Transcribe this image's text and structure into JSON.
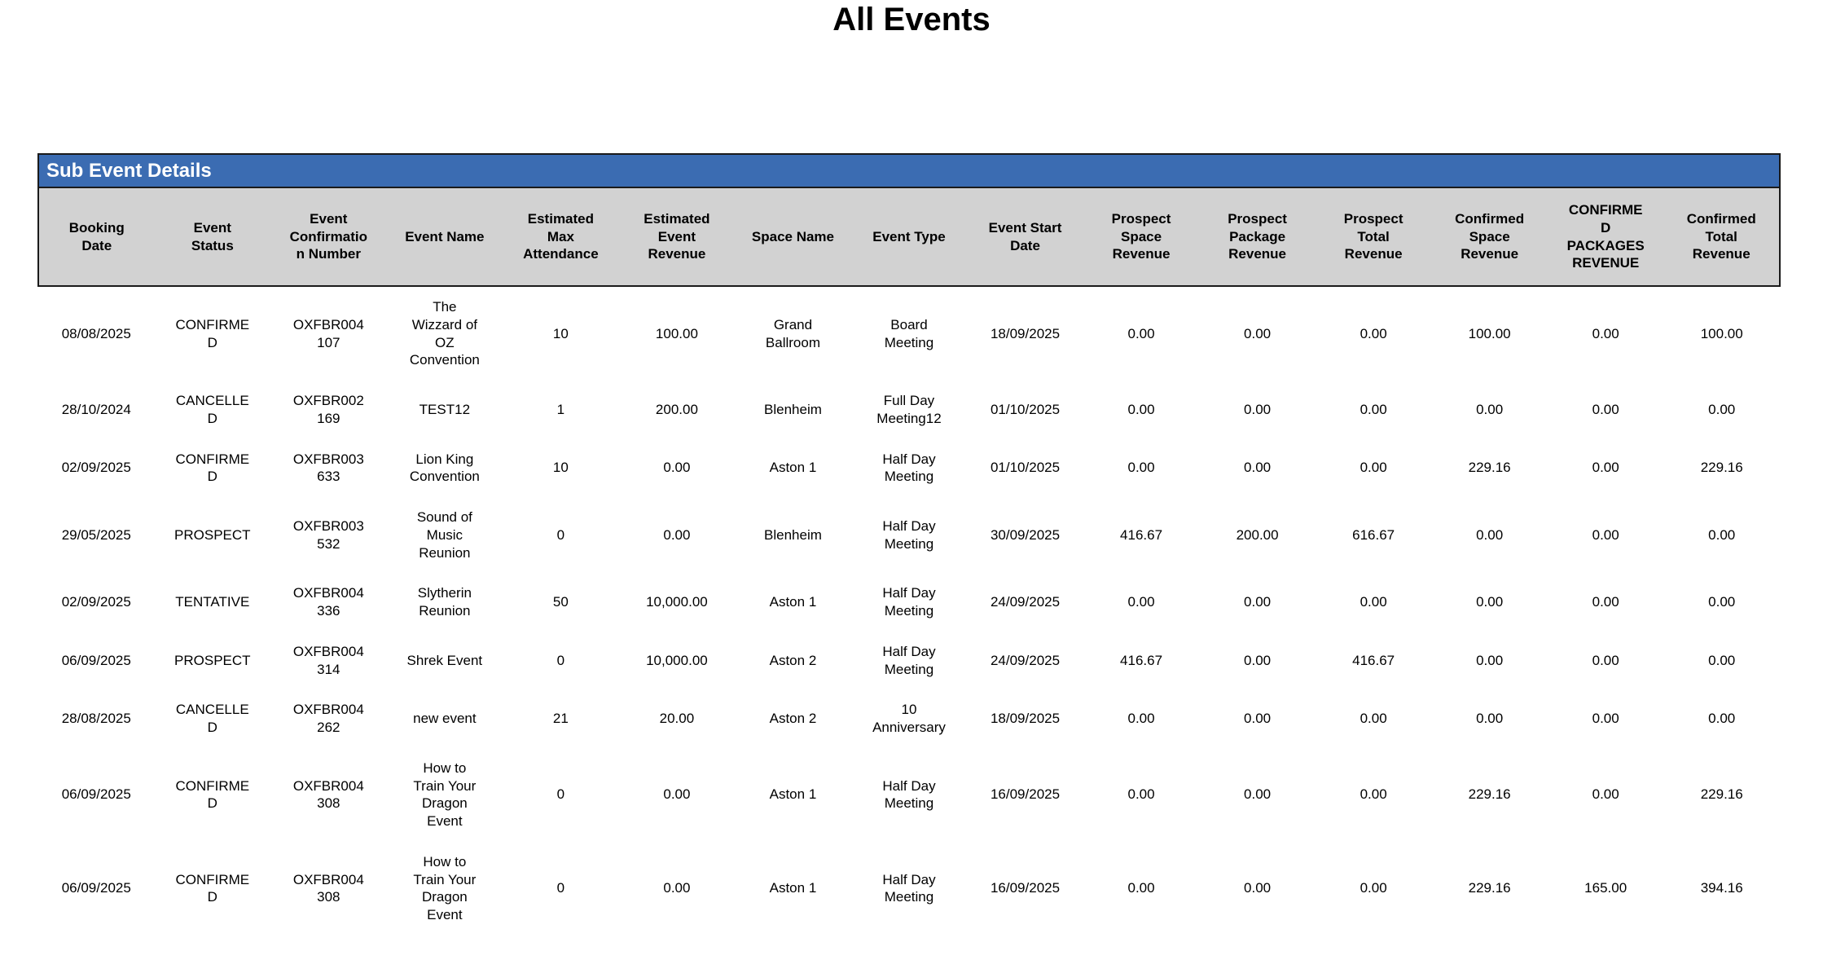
{
  "page": {
    "title": "All Events"
  },
  "colors": {
    "section_header_bg": "#3B6CB2",
    "section_header_text": "#FFFFFF",
    "column_header_bg": "#D2D2D2",
    "border_dark": "#1A1A1A",
    "body_bg": "#FFFFFF",
    "text": "#000000"
  },
  "section": {
    "title": "Sub Event Details"
  },
  "table": {
    "columns": [
      {
        "key": "booking_date",
        "label": "Booking Date"
      },
      {
        "key": "event_status",
        "label": "Event Status"
      },
      {
        "key": "event_confirmation_number",
        "label": "Event Confirmation Number"
      },
      {
        "key": "event_name",
        "label": "Event Name"
      },
      {
        "key": "estimated_max_attendance",
        "label": "Estimated Max Attendance"
      },
      {
        "key": "estimated_event_revenue",
        "label": "Estimated Event Revenue"
      },
      {
        "key": "space_name",
        "label": "Space Name"
      },
      {
        "key": "event_type",
        "label": "Event Type"
      },
      {
        "key": "event_start_date",
        "label": "Event Start Date"
      },
      {
        "key": "prospect_space_revenue",
        "label": "Prospect Space Revenue"
      },
      {
        "key": "prospect_package_revenue",
        "label": "Prospect Package Revenue"
      },
      {
        "key": "prospect_total_revenue",
        "label": "Prospect Total Revenue"
      },
      {
        "key": "confirmed_space_revenue",
        "label": "Confirmed Space Revenue"
      },
      {
        "key": "confirmed_packages_revenue",
        "label": "CONFIRMED PACKAGES REVENUE"
      },
      {
        "key": "confirmed_total_revenue",
        "label": "Confirmed Total Revenue"
      }
    ],
    "rows": [
      {
        "booking_date": "08/08/2025",
        "event_status": "CONFIRMED",
        "event_confirmation_number": "OXFBR004107",
        "event_name": "The Wizzard of OZ Convention",
        "estimated_max_attendance": "10",
        "estimated_event_revenue": "100.00",
        "space_name": "Grand Ballroom",
        "event_type": "Board Meeting",
        "event_start_date": "18/09/2025",
        "prospect_space_revenue": "0.00",
        "prospect_package_revenue": "0.00",
        "prospect_total_revenue": "0.00",
        "confirmed_space_revenue": "100.00",
        "confirmed_packages_revenue": "0.00",
        "confirmed_total_revenue": "100.00"
      },
      {
        "booking_date": "28/10/2024",
        "event_status": "CANCELLED",
        "event_confirmation_number": "OXFBR002169",
        "event_name": "TEST12",
        "estimated_max_attendance": "1",
        "estimated_event_revenue": "200.00",
        "space_name": "Blenheim",
        "event_type": "Full Day Meeting12",
        "event_start_date": "01/10/2025",
        "prospect_space_revenue": "0.00",
        "prospect_package_revenue": "0.00",
        "prospect_total_revenue": "0.00",
        "confirmed_space_revenue": "0.00",
        "confirmed_packages_revenue": "0.00",
        "confirmed_total_revenue": "0.00"
      },
      {
        "booking_date": "02/09/2025",
        "event_status": "CONFIRMED",
        "event_confirmation_number": "OXFBR003633",
        "event_name": "Lion King Convention",
        "estimated_max_attendance": "10",
        "estimated_event_revenue": "0.00",
        "space_name": "Aston 1",
        "event_type": "Half Day Meeting",
        "event_start_date": "01/10/2025",
        "prospect_space_revenue": "0.00",
        "prospect_package_revenue": "0.00",
        "prospect_total_revenue": "0.00",
        "confirmed_space_revenue": "229.16",
        "confirmed_packages_revenue": "0.00",
        "confirmed_total_revenue": "229.16"
      },
      {
        "booking_date": "29/05/2025",
        "event_status": "PROSPECT",
        "event_confirmation_number": "OXFBR003532",
        "event_name": "Sound of Music Reunion",
        "estimated_max_attendance": "0",
        "estimated_event_revenue": "0.00",
        "space_name": "Blenheim",
        "event_type": "Half Day Meeting",
        "event_start_date": "30/09/2025",
        "prospect_space_revenue": "416.67",
        "prospect_package_revenue": "200.00",
        "prospect_total_revenue": "616.67",
        "confirmed_space_revenue": "0.00",
        "confirmed_packages_revenue": "0.00",
        "confirmed_total_revenue": "0.00"
      },
      {
        "booking_date": "02/09/2025",
        "event_status": "TENTATIVE",
        "event_confirmation_number": "OXFBR004336",
        "event_name": "Slytherin Reunion",
        "estimated_max_attendance": "50",
        "estimated_event_revenue": "10,000.00",
        "space_name": "Aston 1",
        "event_type": "Half Day Meeting",
        "event_start_date": "24/09/2025",
        "prospect_space_revenue": "0.00",
        "prospect_package_revenue": "0.00",
        "prospect_total_revenue": "0.00",
        "confirmed_space_revenue": "0.00",
        "confirmed_packages_revenue": "0.00",
        "confirmed_total_revenue": "0.00"
      },
      {
        "booking_date": "06/09/2025",
        "event_status": "PROSPECT",
        "event_confirmation_number": "OXFBR004314",
        "event_name": "Shrek Event",
        "estimated_max_attendance": "0",
        "estimated_event_revenue": "10,000.00",
        "space_name": "Aston 2",
        "event_type": "Half Day Meeting",
        "event_start_date": "24/09/2025",
        "prospect_space_revenue": "416.67",
        "prospect_package_revenue": "0.00",
        "prospect_total_revenue": "416.67",
        "confirmed_space_revenue": "0.00",
        "confirmed_packages_revenue": "0.00",
        "confirmed_total_revenue": "0.00"
      },
      {
        "booking_date": "28/08/2025",
        "event_status": "CANCELLED",
        "event_confirmation_number": "OXFBR004262",
        "event_name": "new event",
        "estimated_max_attendance": "21",
        "estimated_event_revenue": "20.00",
        "space_name": "Aston 2",
        "event_type": "10 Anniversary",
        "event_start_date": "18/09/2025",
        "prospect_space_revenue": "0.00",
        "prospect_package_revenue": "0.00",
        "prospect_total_revenue": "0.00",
        "confirmed_space_revenue": "0.00",
        "confirmed_packages_revenue": "0.00",
        "confirmed_total_revenue": "0.00"
      },
      {
        "booking_date": "06/09/2025",
        "event_status": "CONFIRMED",
        "event_confirmation_number": "OXFBR004308",
        "event_name": "How to Train Your Dragon Event",
        "estimated_max_attendance": "0",
        "estimated_event_revenue": "0.00",
        "space_name": "Aston 1",
        "event_type": "Half Day Meeting",
        "event_start_date": "16/09/2025",
        "prospect_space_revenue": "0.00",
        "prospect_package_revenue": "0.00",
        "prospect_total_revenue": "0.00",
        "confirmed_space_revenue": "229.16",
        "confirmed_packages_revenue": "0.00",
        "confirmed_total_revenue": "229.16"
      },
      {
        "booking_date": "06/09/2025",
        "event_status": "CONFIRMED",
        "event_confirmation_number": "OXFBR004308",
        "event_name": "How to Train Your Dragon Event",
        "estimated_max_attendance": "0",
        "estimated_event_revenue": "0.00",
        "space_name": "Aston 1",
        "event_type": "Half Day Meeting",
        "event_start_date": "16/09/2025",
        "prospect_space_revenue": "0.00",
        "prospect_package_revenue": "0.00",
        "prospect_total_revenue": "0.00",
        "confirmed_space_revenue": "229.16",
        "confirmed_packages_revenue": "165.00",
        "confirmed_total_revenue": "394.16"
      }
    ]
  }
}
